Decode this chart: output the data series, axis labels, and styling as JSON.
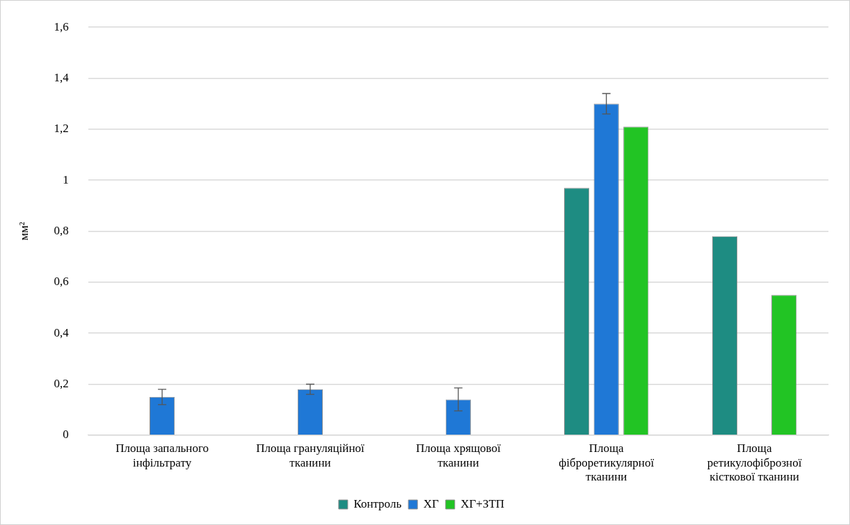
{
  "chart_data": {
    "type": "bar",
    "ylabel": "мм²",
    "categories": [
      "Площа запального інфільтрату",
      "Площа грануляційної тканини",
      "Площа хрящової тканини",
      "Площа фіброретикулярної тканини",
      "Площа ретикулофіброзної кісткової тканини"
    ],
    "series": [
      {
        "name": "Контроль",
        "color": "#1e8c82",
        "values": [
          null,
          null,
          null,
          0.97,
          0.78
        ]
      },
      {
        "name": "ХГ",
        "color": "#1f78d6",
        "values": [
          0.15,
          0.18,
          0.14,
          1.3,
          null
        ],
        "errors": [
          0.03,
          0.02,
          0.045,
          0.04,
          null
        ]
      },
      {
        "name": "ХГ+ЗТП",
        "color": "#22c424",
        "values": [
          null,
          null,
          null,
          1.21,
          0.55
        ]
      }
    ],
    "ylim": [
      0,
      1.6
    ],
    "yticks": [
      0,
      {
        "value": 0.2,
        "label": "0,2"
      },
      {
        "value": 0.4,
        "label": "0,4"
      },
      {
        "value": 0.6,
        "label": "0,6"
      },
      {
        "value": 0.8,
        "label": "0,8"
      },
      1,
      {
        "value": 1.2,
        "label": "1,2"
      },
      {
        "value": 1.4,
        "label": "1,4"
      },
      {
        "value": 1.6,
        "label": "1,6"
      }
    ],
    "grid": "y",
    "legend": "bottom"
  }
}
